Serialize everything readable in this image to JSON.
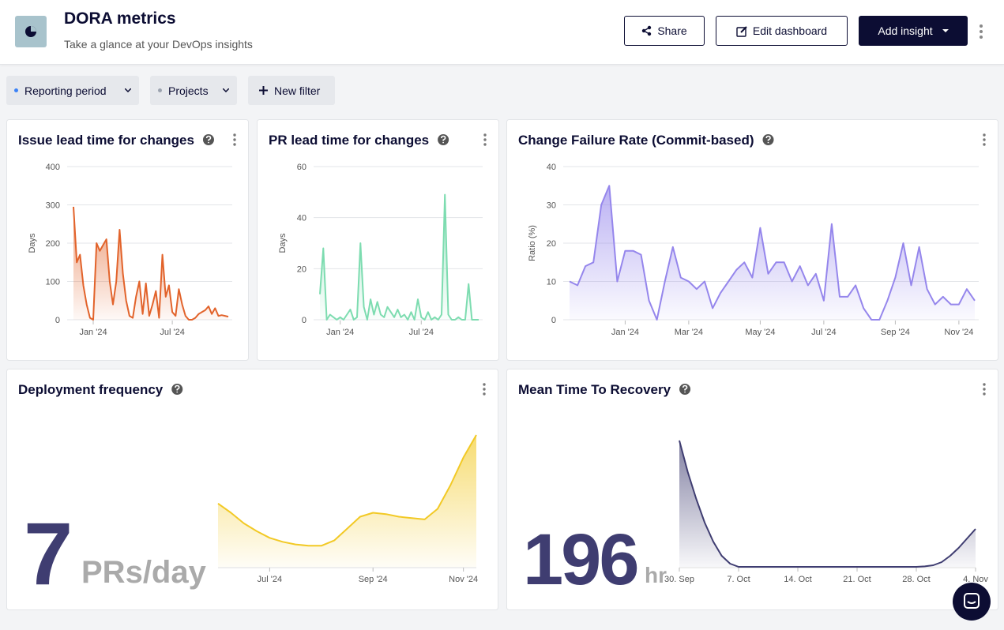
{
  "header": {
    "title": "DORA metrics",
    "subtitle": "Take a glance at your DevOps insights",
    "buttons": [
      "Share",
      "Edit dashboard",
      "Add insight"
    ]
  },
  "filters": [
    "Reporting period",
    "Projects",
    "New filter"
  ],
  "chart_data": [
    {
      "type": "area",
      "title": "Issue lead time for changes",
      "ylabel": "Days",
      "color": "#e2632b",
      "categories": [
        null,
        null,
        null,
        null,
        null,
        null,
        "Jan '24",
        null,
        null,
        null,
        null,
        null,
        null,
        null,
        null,
        null,
        null,
        null,
        null,
        null,
        null,
        null,
        null,
        null,
        null,
        null,
        null,
        null,
        null,
        null,
        "Jul '24",
        null,
        null,
        null,
        null,
        null,
        null,
        null,
        null,
        null,
        null,
        null,
        null,
        null,
        null,
        null,
        null,
        null
      ],
      "values": [
        295,
        150,
        170,
        90,
        40,
        5,
        0,
        200,
        180,
        195,
        210,
        100,
        40,
        100,
        235,
        120,
        50,
        10,
        5,
        60,
        100,
        15,
        95,
        10,
        40,
        75,
        5,
        170,
        60,
        90,
        20,
        10,
        80,
        40,
        10,
        0,
        0,
        5,
        15,
        20,
        25,
        35,
        15,
        30,
        10,
        12,
        10,
        8
      ],
      "ylim": [
        0,
        400
      ],
      "yticks": [
        0,
        100,
        200,
        300,
        400
      ],
      "grid": true
    },
    {
      "type": "area",
      "title": "PR lead time for changes",
      "ylabel": "Days",
      "color": "#7ddcb0",
      "categories": [
        null,
        null,
        null,
        null,
        null,
        null,
        "Jan '24",
        null,
        null,
        null,
        null,
        null,
        null,
        null,
        null,
        null,
        null,
        null,
        null,
        null,
        null,
        null,
        null,
        null,
        null,
        null,
        null,
        null,
        null,
        null,
        "Jul '24",
        null,
        null,
        null,
        null,
        null,
        null,
        null,
        null,
        null,
        null,
        null,
        null,
        null,
        null,
        null,
        null,
        null
      ],
      "values": [
        10,
        28,
        0,
        2,
        1,
        0,
        1,
        0,
        2,
        4,
        0,
        1,
        30,
        5,
        0,
        8,
        2,
        7,
        2,
        1,
        5,
        3,
        1,
        4,
        1,
        2,
        0,
        3,
        0,
        8,
        1,
        0,
        3,
        0,
        1,
        0,
        2,
        49,
        2,
        0,
        0,
        1,
        0,
        0,
        14,
        0,
        0,
        0
      ],
      "ylim": [
        0,
        60
      ],
      "yticks": [
        0,
        20,
        40,
        60
      ],
      "grid": true
    },
    {
      "type": "area",
      "title": "Change Failure Rate (Commit-based)",
      "ylabel": "Ratio (%)",
      "color": "#9586ec",
      "categories": [
        null,
        null,
        null,
        null,
        null,
        null,
        null,
        "Jan '24",
        null,
        null,
        null,
        null,
        null,
        null,
        null,
        "Mar '24",
        null,
        null,
        null,
        null,
        null,
        null,
        null,
        null,
        "May '24",
        null,
        null,
        null,
        null,
        null,
        null,
        null,
        "Jul '24",
        null,
        null,
        null,
        null,
        null,
        null,
        null,
        null,
        "Sep '24",
        null,
        null,
        null,
        null,
        null,
        null,
        null,
        "Nov '24",
        null,
        null
      ],
      "values": [
        10,
        9,
        14,
        15,
        30,
        35,
        10,
        18,
        18,
        17,
        5,
        0,
        10,
        19,
        11,
        10,
        8,
        10,
        3,
        7,
        10,
        13,
        15,
        11,
        24,
        12,
        15,
        15,
        10,
        14,
        9,
        12,
        5,
        25,
        6,
        6,
        9,
        3,
        0,
        0,
        5,
        11,
        20,
        9,
        19,
        8,
        4,
        6,
        4,
        4,
        8,
        5
      ],
      "ylim": [
        0,
        40
      ],
      "yticks": [
        0,
        10,
        20,
        30,
        40
      ],
      "grid": true
    },
    {
      "type": "area",
      "title": "Deployment frequency",
      "big_value": 7,
      "unit": "PRs/day",
      "color": "#f2c925",
      "categories": [
        null,
        null,
        null,
        null,
        "Jul '24",
        null,
        null,
        null,
        null,
        null,
        null,
        null,
        "Sep '24",
        null,
        null,
        null,
        null,
        null,
        null,
        "Nov '24",
        null
      ],
      "values": [
        4.8,
        4.1,
        3.3,
        2.7,
        2.2,
        1.9,
        1.7,
        1.6,
        1.6,
        2.0,
        2.9,
        3.8,
        4.1,
        4.0,
        3.8,
        3.7,
        3.6,
        4.4,
        6.2,
        8.3,
        10
      ],
      "grid": false
    },
    {
      "type": "area",
      "title": "Mean Time To Recovery",
      "big_value": 196,
      "unit": "hr",
      "color": "#3f3d71",
      "categories": [
        "30. Sep",
        null,
        null,
        null,
        null,
        null,
        null,
        "7. Oct",
        null,
        null,
        null,
        null,
        null,
        null,
        "14. Oct",
        null,
        null,
        null,
        null,
        null,
        null,
        "21. Oct",
        null,
        null,
        null,
        null,
        null,
        null,
        "28. Oct",
        null,
        null,
        null,
        null,
        null,
        null,
        "4. Nov"
      ],
      "values": [
        800,
        600,
        430,
        280,
        160,
        70,
        20,
        0,
        0,
        0,
        0,
        0,
        0,
        0,
        0,
        0,
        0,
        0,
        0,
        0,
        0,
        0,
        0,
        0,
        0,
        0,
        0,
        0,
        0,
        3,
        10,
        30,
        70,
        120,
        180,
        240
      ],
      "grid": false
    }
  ]
}
